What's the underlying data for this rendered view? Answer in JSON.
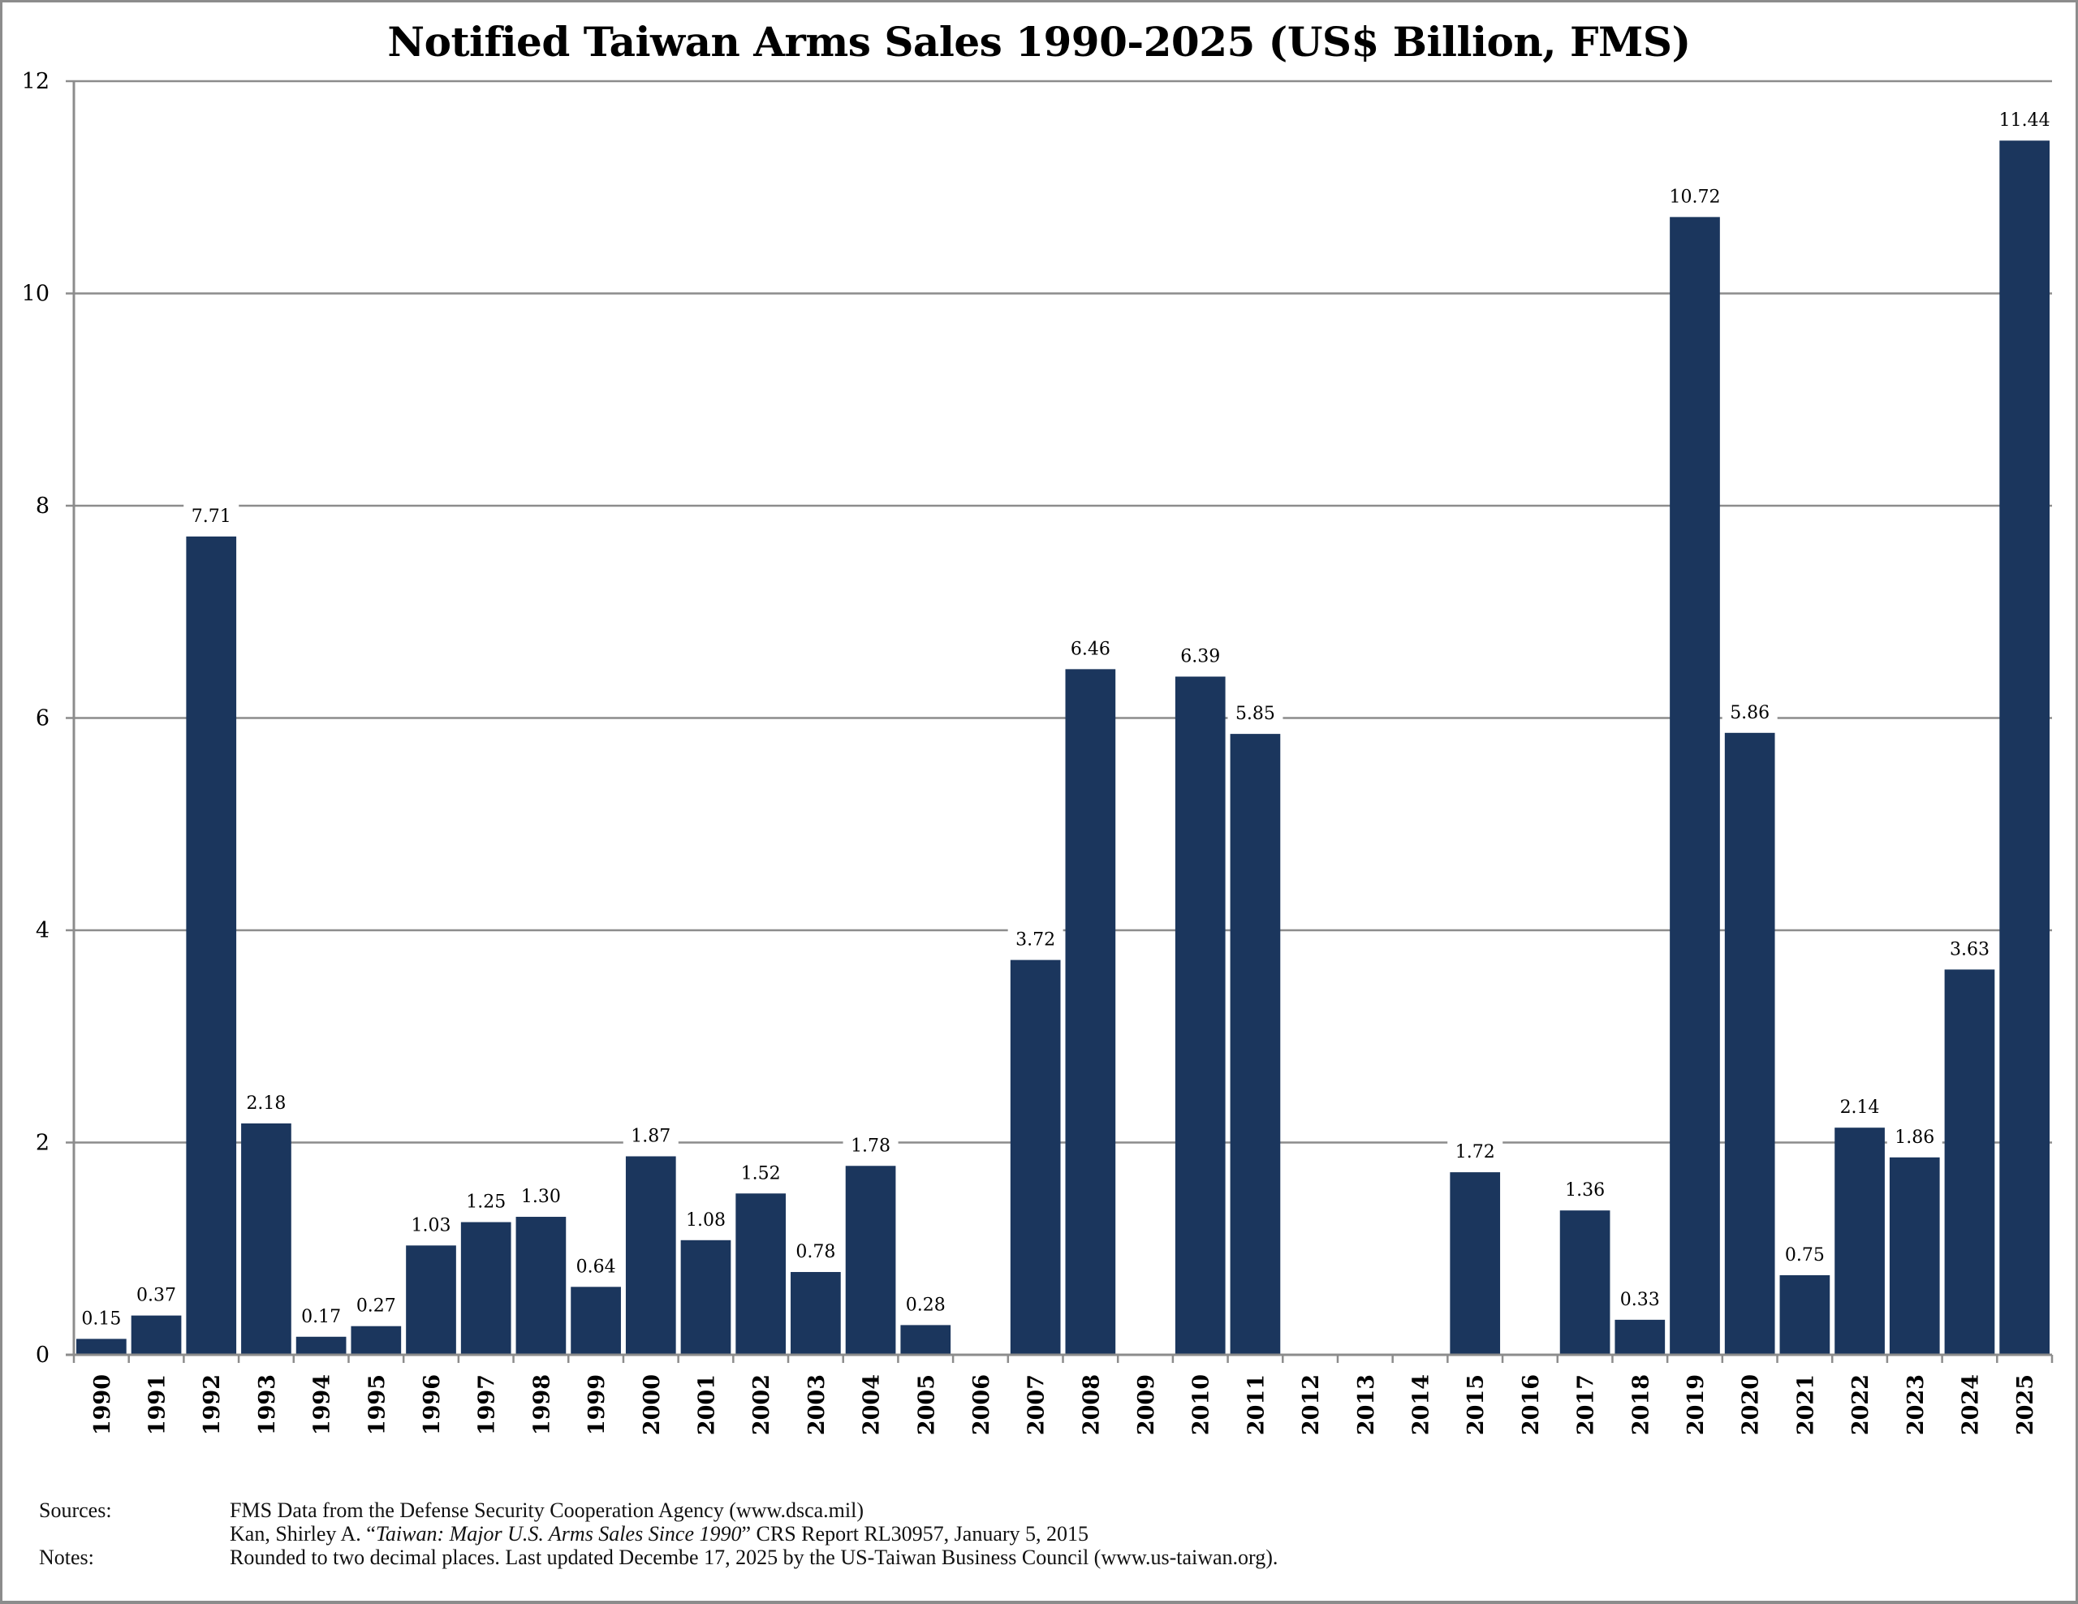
{
  "chart_data": {
    "type": "bar",
    "title": "Notified Taiwan Arms Sales 1990-2025 (US$ Billion, FMS)",
    "xlabel": "",
    "ylabel": "",
    "ylim": [
      0,
      12
    ],
    "yticks": [
      "0",
      "2",
      "4",
      "6",
      "8",
      "10",
      "12"
    ],
    "grid": true,
    "bar_color": "#1b365d",
    "categories": [
      "1990",
      "1991",
      "1992",
      "1993",
      "1994",
      "1995",
      "1996",
      "1997",
      "1998",
      "1999",
      "2000",
      "2001",
      "2002",
      "2003",
      "2004",
      "2005",
      "2006",
      "2007",
      "2008",
      "2009",
      "2010",
      "2011",
      "2012",
      "2013",
      "2014",
      "2015",
      "2016",
      "2017",
      "2018",
      "2019",
      "2020",
      "2021",
      "2022",
      "2023",
      "2024",
      "2025"
    ],
    "values": [
      0.15,
      0.37,
      7.71,
      2.18,
      0.17,
      0.27,
      1.03,
      1.25,
      1.3,
      0.64,
      1.87,
      1.08,
      1.52,
      0.78,
      1.78,
      0.28,
      null,
      3.72,
      6.46,
      null,
      6.39,
      5.85,
      null,
      null,
      null,
      1.72,
      null,
      1.36,
      0.33,
      10.72,
      5.86,
      0.75,
      2.14,
      1.86,
      3.63,
      11.44
    ],
    "data_labels": [
      "0.15",
      "0.37",
      "7.71",
      "2.18",
      "0.17",
      "0.27",
      "1.03",
      "1.25",
      "1.30",
      "0.64",
      "1.87",
      "1.08",
      "1.52",
      "0.78",
      "1.78",
      "0.28",
      "",
      "3.72",
      "6.46",
      "",
      "6.39",
      "5.85",
      "",
      "",
      "",
      "1.72",
      "",
      "1.36",
      "0.33",
      "10.72",
      "5.86",
      "0.75",
      "2.14",
      "1.86",
      "3.63",
      "11.44"
    ]
  },
  "footer": {
    "sources_label": "Sources:",
    "source_1": "FMS Data from the Defense Security Cooperation Agency (www.dsca.mil)",
    "source_2_prefix": "Kan, Shirley A. “",
    "source_2_italic": "Taiwan: Major U.S. Arms Sales Since 1990",
    "source_2_suffix": "” CRS Report RL30957, January 5, 2015",
    "notes_label": "Notes:",
    "notes": "Rounded to two decimal places. Last updated Decembe 17, 2025 by the US-Taiwan Business Council (www.us-taiwan.org)."
  }
}
